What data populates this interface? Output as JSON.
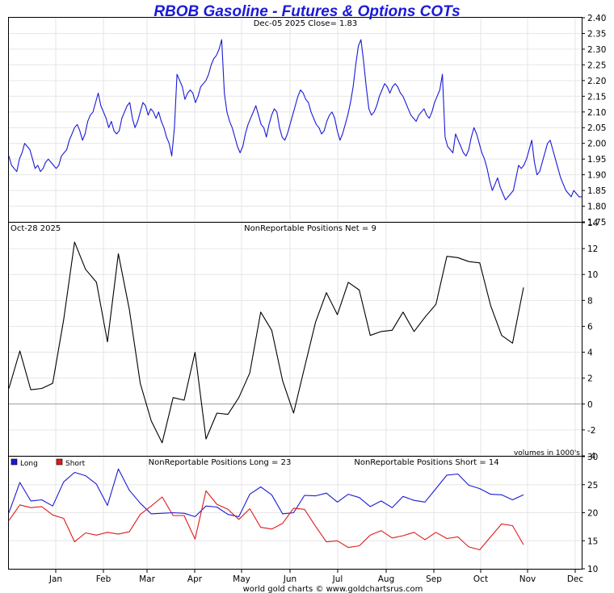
{
  "chart_data": [
    {
      "type": "line",
      "name": "price",
      "title": "RBOB Gasoline - Futures & Options COTs",
      "subtitle": "Dec-05  2025   Close= 1.83",
      "ylim": [
        1.75,
        2.4
      ],
      "yticks": [
        "2.40",
        "2.35",
        "2.30",
        "2.25",
        "2.20",
        "2.15",
        "2.10",
        "2.05",
        "2.00",
        "1.95",
        "1.90",
        "1.85",
        "1.80",
        "1.75"
      ],
      "color": "#1a1ad8",
      "values": [
        1.96,
        1.93,
        1.92,
        1.91,
        1.95,
        1.97,
        2.0,
        1.99,
        1.98,
        1.95,
        1.92,
        1.93,
        1.91,
        1.92,
        1.94,
        1.95,
        1.94,
        1.93,
        1.92,
        1.93,
        1.96,
        1.97,
        1.98,
        2.01,
        2.03,
        2.05,
        2.06,
        2.04,
        2.01,
        2.03,
        2.07,
        2.09,
        2.1,
        2.13,
        2.16,
        2.12,
        2.1,
        2.08,
        2.05,
        2.07,
        2.04,
        2.03,
        2.04,
        2.08,
        2.1,
        2.12,
        2.13,
        2.08,
        2.05,
        2.07,
        2.1,
        2.13,
        2.12,
        2.09,
        2.11,
        2.1,
        2.08,
        2.1,
        2.07,
        2.05,
        2.02,
        2.0,
        1.96,
        2.05,
        2.22,
        2.2,
        2.18,
        2.14,
        2.16,
        2.17,
        2.16,
        2.13,
        2.15,
        2.18,
        2.19,
        2.2,
        2.22,
        2.25,
        2.27,
        2.28,
        2.3,
        2.33,
        2.16,
        2.1,
        2.07,
        2.05,
        2.02,
        1.99,
        1.97,
        1.99,
        2.03,
        2.06,
        2.08,
        2.1,
        2.12,
        2.09,
        2.06,
        2.05,
        2.02,
        2.06,
        2.09,
        2.11,
        2.1,
        2.05,
        2.02,
        2.01,
        2.03,
        2.06,
        2.09,
        2.12,
        2.15,
        2.17,
        2.16,
        2.14,
        2.13,
        2.1,
        2.08,
        2.06,
        2.05,
        2.03,
        2.04,
        2.07,
        2.09,
        2.1,
        2.08,
        2.04,
        2.01,
        2.03,
        2.06,
        2.09,
        2.13,
        2.18,
        2.25,
        2.31,
        2.33,
        2.26,
        2.18,
        2.11,
        2.09,
        2.1,
        2.12,
        2.15,
        2.17,
        2.19,
        2.18,
        2.16,
        2.18,
        2.19,
        2.18,
        2.16,
        2.15,
        2.13,
        2.11,
        2.09,
        2.08,
        2.07,
        2.09,
        2.1,
        2.11,
        2.09,
        2.08,
        2.1,
        2.13,
        2.15,
        2.17,
        2.22,
        2.02,
        1.99,
        1.98,
        1.97,
        2.03,
        2.01,
        1.99,
        1.97,
        1.96,
        1.98,
        2.02,
        2.05,
        2.03,
        2.0,
        1.97,
        1.95,
        1.92,
        1.88,
        1.85,
        1.87,
        1.89,
        1.86,
        1.84,
        1.82,
        1.83,
        1.84,
        1.85,
        1.89,
        1.93,
        1.92,
        1.93,
        1.95,
        1.98,
        2.01,
        1.94,
        1.9,
        1.91,
        1.94,
        1.97,
        2.0,
        2.01,
        1.98,
        1.95,
        1.92,
        1.89,
        1.87,
        1.85,
        1.84,
        1.83,
        1.85,
        1.84,
        1.83,
        1.83
      ]
    },
    {
      "type": "line",
      "name": "net",
      "label_left": "Oct-28  2025",
      "label_center": "NonReportable Positions Net = 9",
      "ylim": [
        -4,
        14
      ],
      "yticks": [
        "14",
        "12",
        "10",
        "8",
        "6",
        "4",
        "2",
        "0",
        "-2",
        "-4"
      ],
      "color": "#000000",
      "note": "volumes in 1000's",
      "values": [
        1.2,
        4.1,
        1.1,
        1.2,
        1.6,
        6.5,
        12.5,
        10.4,
        9.4,
        4.8,
        11.6,
        7.3,
        1.6,
        -1.3,
        -3.0,
        0.5,
        0.3,
        4.0,
        -2.7,
        -0.7,
        -0.8,
        0.5,
        2.4,
        7.1,
        5.7,
        1.8,
        -0.7,
        2.8,
        6.3,
        8.6,
        6.9,
        9.4,
        8.8,
        5.3,
        5.6,
        5.7,
        7.1,
        5.6,
        6.7,
        7.7,
        11.4,
        11.3,
        11.0,
        10.9,
        7.6,
        5.3,
        4.7,
        9.0
      ]
    },
    {
      "type": "line",
      "name": "long-short",
      "legend": [
        {
          "name": "Long",
          "color": "#1a1ad8"
        },
        {
          "name": "Short",
          "color": "#e01a1a"
        }
      ],
      "label_long": "NonReportable Positions Long = 23",
      "label_short": "NonReportable Positions Short = 14",
      "ylim": [
        10,
        30
      ],
      "yticks": [
        "30",
        "25",
        "20",
        "15",
        "10"
      ],
      "series": [
        {
          "name": "Long",
          "color": "#1a1ad8",
          "values": [
            20.0,
            25.4,
            22.1,
            22.3,
            21.2,
            25.5,
            27.2,
            26.6,
            25.1,
            21.3,
            27.8,
            24.0,
            21.7,
            19.8,
            19.9,
            20.0,
            19.9,
            19.3,
            21.2,
            21.0,
            19.7,
            19.3,
            23.3,
            24.6,
            23.2,
            19.8,
            20.0,
            23.1,
            23.0,
            23.5,
            21.9,
            23.3,
            22.7,
            21.1,
            22.1,
            20.9,
            22.9,
            22.2,
            21.9,
            24.3,
            26.7,
            26.9,
            24.9,
            24.3,
            23.3,
            23.2,
            22.3,
            23.2
          ]
        },
        {
          "name": "Short",
          "color": "#e01a1a",
          "values": [
            18.6,
            21.4,
            20.9,
            21.1,
            19.6,
            19.0,
            14.8,
            16.4,
            16.0,
            16.5,
            16.2,
            16.6,
            19.7,
            21.2,
            22.8,
            19.5,
            19.5,
            15.3,
            23.9,
            21.5,
            20.6,
            18.8,
            20.7,
            17.4,
            17.1,
            18.1,
            20.8,
            20.6,
            17.6,
            14.8,
            15.0,
            13.8,
            14.1,
            16.0,
            16.8,
            15.5,
            15.9,
            16.5,
            15.2,
            16.5,
            15.4,
            15.7,
            13.9,
            13.4,
            15.7,
            18.0,
            17.7,
            14.3
          ]
        }
      ]
    }
  ],
  "x_axis": {
    "months": [
      "Jan",
      "Feb",
      "Mar",
      "Apr",
      "May",
      "Jun",
      "Jul",
      "Aug",
      "Sep",
      "Oct",
      "Nov",
      "Dec"
    ]
  },
  "footer": "world gold charts © www.goldchartsrus.com"
}
